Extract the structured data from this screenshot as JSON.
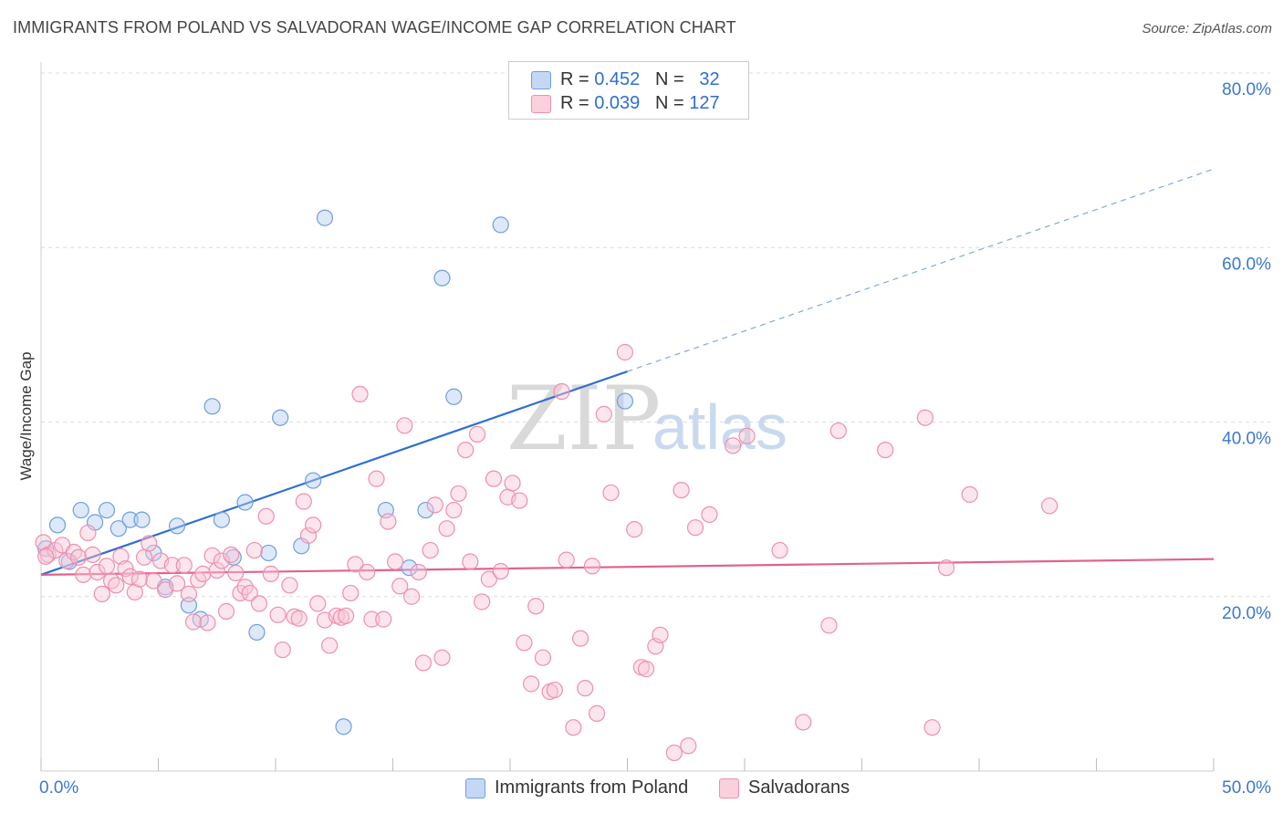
{
  "title": "IMMIGRANTS FROM POLAND VS SALVADORAN WAGE/INCOME GAP CORRELATION CHART",
  "source": "Source: ZipAtlas.com",
  "watermark": {
    "zip": "ZIP",
    "atlas": "atlas"
  },
  "legend": {
    "rows": [
      {
        "r_label": "R = ",
        "r_value": "0.452",
        "n_label": "N = ",
        "n_value": "32",
        "color": "#a9c6f0"
      },
      {
        "r_label": "R = ",
        "r_value": "0.039",
        "n_label": "N = ",
        "n_value": "127",
        "color": "#f6b8cc"
      }
    ]
  },
  "bottom_legend": [
    {
      "label": "Immigrants from Poland",
      "color": "#a9c6f0"
    },
    {
      "label": "Salvadorans",
      "color": "#f6b8cc"
    }
  ],
  "chart_data": {
    "type": "scatter",
    "ylabel": "Wage/Income Gap",
    "xlabel": "",
    "xlim": [
      0,
      50
    ],
    "ylim": [
      0,
      80
    ],
    "x_tick_labels": [
      "0.0%",
      "50.0%"
    ],
    "y_tick_labels": [
      "20.0%",
      "40.0%",
      "60.0%",
      "80.0%"
    ],
    "y_ticks": [
      20,
      40,
      60,
      80
    ],
    "grid": "horizontal dashed",
    "legend_position": "top-center",
    "series": [
      {
        "name": "Immigrants from Poland",
        "color": "#6f9ee0",
        "fill": "#b4cdf2",
        "trend": {
          "x0": 0,
          "y0": 22.5,
          "x1": 25,
          "y1": 45.8,
          "dash_to_x": 50,
          "dash_to_y": 69.0,
          "color": "#2f6fd0"
        },
        "points": [
          [
            0.2,
            25.5
          ],
          [
            0.7,
            28.2
          ],
          [
            1.2,
            24.0
          ],
          [
            1.7,
            29.9
          ],
          [
            2.3,
            28.5
          ],
          [
            2.8,
            29.9
          ],
          [
            3.3,
            27.8
          ],
          [
            3.8,
            28.8
          ],
          [
            4.3,
            28.8
          ],
          [
            4.8,
            25.0
          ],
          [
            5.3,
            21.1
          ],
          [
            5.8,
            28.1
          ],
          [
            6.3,
            19.0
          ],
          [
            6.8,
            17.4
          ],
          [
            7.3,
            41.8
          ],
          [
            7.7,
            28.8
          ],
          [
            8.2,
            24.5
          ],
          [
            8.7,
            30.8
          ],
          [
            9.2,
            15.9
          ],
          [
            9.7,
            25.0
          ],
          [
            10.2,
            40.5
          ],
          [
            11.1,
            25.8
          ],
          [
            11.6,
            33.3
          ],
          [
            12.1,
            63.4
          ],
          [
            12.9,
            5.1
          ],
          [
            14.7,
            29.9
          ],
          [
            15.7,
            23.3
          ],
          [
            16.4,
            29.9
          ],
          [
            17.1,
            56.5
          ],
          [
            17.6,
            42.9
          ],
          [
            19.6,
            62.6
          ],
          [
            24.9,
            42.4
          ]
        ]
      },
      {
        "name": "Salvadorans",
        "color": "#ef8fad",
        "fill": "#f8c5d5",
        "trend": {
          "x0": 0,
          "y0": 22.5,
          "x1": 50,
          "y1": 24.3,
          "color": "#e0628e"
        },
        "points": [
          [
            0.1,
            26.2
          ],
          [
            0.3,
            24.8
          ],
          [
            0.6,
            25.3
          ],
          [
            0.9,
            25.9
          ],
          [
            1.1,
            24.1
          ],
          [
            1.4,
            25.1
          ],
          [
            1.6,
            24.5
          ],
          [
            1.8,
            22.5
          ],
          [
            2.0,
            27.3
          ],
          [
            2.2,
            24.8
          ],
          [
            2.4,
            22.8
          ],
          [
            2.6,
            20.3
          ],
          [
            2.8,
            23.5
          ],
          [
            3.0,
            21.8
          ],
          [
            3.2,
            21.3
          ],
          [
            3.4,
            24.6
          ],
          [
            3.6,
            23.2
          ],
          [
            3.8,
            22.3
          ],
          [
            4.0,
            20.5
          ],
          [
            4.2,
            22.0
          ],
          [
            4.4,
            24.5
          ],
          [
            4.6,
            26.1
          ],
          [
            4.8,
            21.8
          ],
          [
            5.1,
            24.1
          ],
          [
            5.3,
            20.8
          ],
          [
            5.6,
            23.6
          ],
          [
            5.8,
            21.5
          ],
          [
            6.1,
            23.6
          ],
          [
            6.3,
            20.3
          ],
          [
            6.5,
            17.1
          ],
          [
            6.7,
            21.9
          ],
          [
            6.9,
            22.6
          ],
          [
            7.1,
            17.0
          ],
          [
            7.3,
            24.7
          ],
          [
            7.5,
            23.0
          ],
          [
            7.7,
            24.1
          ],
          [
            7.9,
            18.3
          ],
          [
            8.1,
            24.8
          ],
          [
            8.3,
            22.7
          ],
          [
            8.5,
            20.4
          ],
          [
            8.7,
            21.1
          ],
          [
            8.9,
            20.4
          ],
          [
            9.1,
            25.3
          ],
          [
            9.3,
            19.2
          ],
          [
            9.6,
            29.2
          ],
          [
            9.8,
            22.6
          ],
          [
            10.1,
            17.9
          ],
          [
            10.3,
            13.9
          ],
          [
            10.6,
            21.3
          ],
          [
            10.8,
            17.7
          ],
          [
            11.0,
            17.5
          ],
          [
            11.2,
            30.9
          ],
          [
            11.4,
            27.0
          ],
          [
            11.6,
            28.2
          ],
          [
            11.8,
            19.2
          ],
          [
            12.1,
            17.3
          ],
          [
            12.3,
            14.4
          ],
          [
            12.6,
            17.8
          ],
          [
            12.8,
            17.6
          ],
          [
            13.0,
            17.8
          ],
          [
            13.2,
            20.4
          ],
          [
            13.4,
            23.7
          ],
          [
            13.6,
            43.2
          ],
          [
            13.9,
            22.8
          ],
          [
            14.1,
            17.4
          ],
          [
            14.3,
            33.5
          ],
          [
            14.6,
            17.4
          ],
          [
            14.8,
            28.6
          ],
          [
            15.1,
            24.0
          ],
          [
            15.3,
            21.2
          ],
          [
            15.5,
            39.6
          ],
          [
            15.8,
            20.0
          ],
          [
            16.1,
            22.8
          ],
          [
            16.3,
            12.4
          ],
          [
            16.6,
            25.3
          ],
          [
            16.8,
            30.5
          ],
          [
            17.1,
            13.0
          ],
          [
            17.3,
            27.8
          ],
          [
            17.6,
            29.9
          ],
          [
            17.8,
            31.8
          ],
          [
            18.1,
            36.8
          ],
          [
            18.3,
            24.0
          ],
          [
            18.6,
            38.6
          ],
          [
            18.8,
            19.4
          ],
          [
            19.1,
            22.0
          ],
          [
            19.3,
            33.5
          ],
          [
            19.6,
            22.9
          ],
          [
            19.9,
            31.4
          ],
          [
            20.1,
            33.0
          ],
          [
            20.4,
            31.0
          ],
          [
            20.6,
            14.7
          ],
          [
            20.9,
            10.0
          ],
          [
            21.1,
            18.9
          ],
          [
            21.4,
            13.0
          ],
          [
            21.7,
            9.1
          ],
          [
            21.9,
            9.3
          ],
          [
            22.2,
            43.5
          ],
          [
            22.4,
            24.2
          ],
          [
            22.7,
            5.0
          ],
          [
            23.0,
            15.2
          ],
          [
            23.2,
            9.5
          ],
          [
            23.5,
            23.5
          ],
          [
            23.7,
            6.6
          ],
          [
            24.0,
            40.9
          ],
          [
            24.3,
            31.9
          ],
          [
            24.9,
            48.0
          ],
          [
            25.3,
            27.7
          ],
          [
            25.6,
            11.9
          ],
          [
            25.8,
            11.7
          ],
          [
            26.2,
            14.3
          ],
          [
            26.4,
            15.6
          ],
          [
            27.0,
            2.1
          ],
          [
            27.3,
            32.2
          ],
          [
            27.6,
            2.9
          ],
          [
            27.9,
            27.9
          ],
          [
            28.5,
            29.4
          ],
          [
            29.5,
            37.3
          ],
          [
            30.1,
            38.4
          ],
          [
            31.5,
            25.3
          ],
          [
            32.5,
            5.6
          ],
          [
            33.6,
            16.7
          ],
          [
            34.0,
            39.0
          ],
          [
            36.0,
            36.8
          ],
          [
            38.0,
            5.0
          ],
          [
            37.7,
            40.5
          ],
          [
            38.6,
            23.3
          ],
          [
            39.6,
            31.7
          ],
          [
            43.0,
            30.4
          ],
          [
            0.2,
            24.6
          ]
        ]
      }
    ]
  }
}
